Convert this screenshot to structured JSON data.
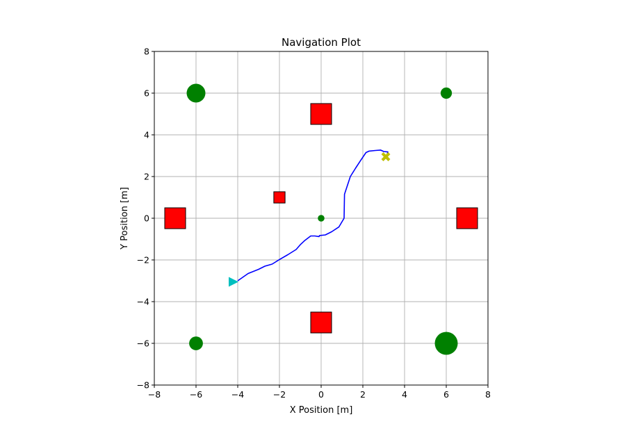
{
  "chart_data": {
    "type": "scatter",
    "title": "Navigation Plot",
    "xlabel": "X Position [m]",
    "ylabel": "Y Position [m]",
    "xlim": [
      -8,
      8
    ],
    "ylim": [
      -8,
      8
    ],
    "xticks": [
      -8,
      -6,
      -4,
      -2,
      0,
      2,
      4,
      6,
      8
    ],
    "yticks": [
      -8,
      -6,
      -4,
      -2,
      0,
      2,
      4,
      6,
      8
    ],
    "xtick_labels": [
      "−8",
      "−6",
      "−4",
      "−2",
      "0",
      "2",
      "4",
      "6",
      "8"
    ],
    "ytick_labels": [
      "−8",
      "−6",
      "−4",
      "−2",
      "0",
      "2",
      "4",
      "6",
      "8"
    ],
    "grid": true,
    "colors": {
      "path": "#0000ff",
      "obstacle_square": "#ff0000",
      "obstacle_circle": "#008000",
      "start_marker": "#00bfbf",
      "goal_marker": "#bfbf00",
      "grid": "#b0b0b0"
    },
    "square_obstacles": [
      {
        "x": 0,
        "y": 5,
        "half_size": 0.5
      },
      {
        "x": 0,
        "y": -5,
        "half_size": 0.5
      },
      {
        "x": -7,
        "y": 0,
        "half_size": 0.5
      },
      {
        "x": 7,
        "y": 0,
        "half_size": 0.5
      },
      {
        "x": -2,
        "y": 1,
        "half_size": 0.27
      }
    ],
    "circle_obstacles": [
      {
        "x": -6,
        "y": 6,
        "radius": 0.45
      },
      {
        "x": 6,
        "y": 6,
        "radius": 0.27
      },
      {
        "x": -6,
        "y": -6,
        "radius": 0.33
      },
      {
        "x": 6,
        "y": -6,
        "radius": 0.55
      },
      {
        "x": 0,
        "y": 0,
        "radius": 0.16
      }
    ],
    "start": {
      "x": -4.2,
      "y": -3.05,
      "marker": "triangle-right"
    },
    "goal": {
      "x": 3.1,
      "y": 2.95,
      "marker": "x"
    },
    "path": [
      [
        -4.0,
        -3.0
      ],
      [
        -3.5,
        -2.65
      ],
      [
        -3.0,
        -2.45
      ],
      [
        -2.7,
        -2.3
      ],
      [
        -2.35,
        -2.2
      ],
      [
        -2.0,
        -1.98
      ],
      [
        -1.6,
        -1.75
      ],
      [
        -1.2,
        -1.5
      ],
      [
        -1.0,
        -1.27
      ],
      [
        -0.8,
        -1.08
      ],
      [
        -0.5,
        -0.85
      ],
      [
        -0.3,
        -0.85
      ],
      [
        -0.1,
        -0.88
      ],
      [
        -0.08,
        -0.83
      ],
      [
        0.2,
        -0.8
      ],
      [
        0.5,
        -0.65
      ],
      [
        0.85,
        -0.42
      ],
      [
        1.1,
        0.0
      ],
      [
        1.12,
        1.15
      ],
      [
        1.4,
        2.0
      ],
      [
        1.65,
        2.4
      ],
      [
        1.9,
        2.78
      ],
      [
        2.15,
        3.15
      ],
      [
        2.3,
        3.22
      ],
      [
        2.6,
        3.25
      ],
      [
        2.85,
        3.27
      ],
      [
        3.0,
        3.2
      ],
      [
        3.2,
        3.18
      ],
      [
        3.15,
        3.0
      ],
      [
        3.1,
        2.95
      ]
    ]
  }
}
